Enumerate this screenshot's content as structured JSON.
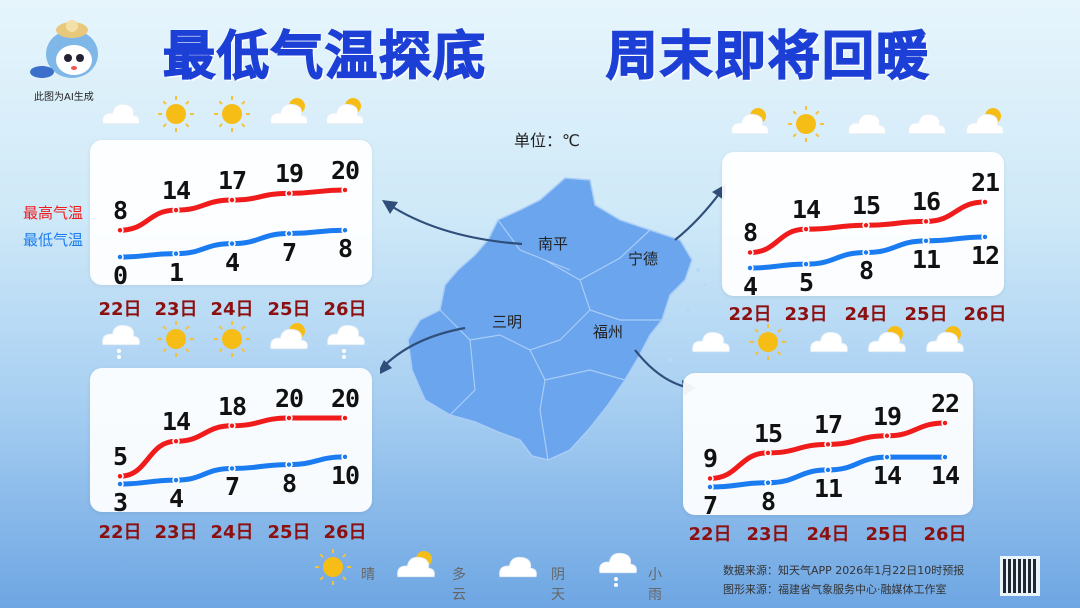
{
  "header": {
    "title_left": "最低气温探底",
    "title_right": "周末即将回暖",
    "ai_note": "此图为AI生成",
    "unit": "单位：℃"
  },
  "series_legend": {
    "high": "最高气温",
    "low": "最低气温",
    "high_color": "#f01c1c",
    "low_color": "#1a7cf0"
  },
  "dates": [
    "22日",
    "23日",
    "24日",
    "25日",
    "26日"
  ],
  "cities": {
    "nanping": "南平",
    "ningde": "宁德",
    "sanming": "三明",
    "fuzhou": "福州"
  },
  "chart_data": [
    {
      "type": "line",
      "city": "南平",
      "categories": [
        "22日",
        "23日",
        "24日",
        "25日",
        "26日"
      ],
      "weather": [
        "cloudy",
        "sunny",
        "sunny",
        "partly-cloudy",
        "partly-cloudy"
      ],
      "series": [
        {
          "name": "最高气温",
          "values": [
            8,
            14,
            17,
            19,
            20
          ]
        },
        {
          "name": "最低气温",
          "values": [
            0,
            1,
            4,
            7,
            8
          ]
        }
      ]
    },
    {
      "type": "line",
      "city": "宁德",
      "categories": [
        "22日",
        "23日",
        "24日",
        "25日",
        "26日"
      ],
      "weather": [
        "partly-cloudy",
        "sunny",
        "cloudy",
        "cloudy",
        "partly-cloudy"
      ],
      "series": [
        {
          "name": "最高气温",
          "values": [
            8,
            14,
            15,
            16,
            21
          ]
        },
        {
          "name": "最低气温",
          "values": [
            4,
            5,
            8,
            11,
            12
          ]
        }
      ]
    },
    {
      "type": "line",
      "city": "三明",
      "categories": [
        "22日",
        "23日",
        "24日",
        "25日",
        "26日"
      ],
      "weather": [
        "light-rain",
        "sunny",
        "sunny",
        "partly-cloudy",
        "light-rain"
      ],
      "series": [
        {
          "name": "最高气温",
          "values": [
            5,
            14,
            18,
            20,
            20
          ]
        },
        {
          "name": "最低气温",
          "values": [
            3,
            4,
            7,
            8,
            10
          ]
        }
      ]
    },
    {
      "type": "line",
      "city": "福州",
      "categories": [
        "22日",
        "23日",
        "24日",
        "25日",
        "26日"
      ],
      "weather": [
        "cloudy",
        "sunny",
        "cloudy",
        "partly-cloudy",
        "partly-cloudy"
      ],
      "series": [
        {
          "name": "最高气温",
          "values": [
            9,
            15,
            17,
            19,
            22
          ]
        },
        {
          "name": "最低气温",
          "values": [
            7,
            8,
            11,
            14,
            14
          ]
        }
      ]
    }
  ],
  "legend": [
    {
      "icon": "sunny",
      "label": "晴"
    },
    {
      "icon": "partly-cloudy",
      "label": "多云"
    },
    {
      "icon": "cloudy",
      "label": "阴天"
    },
    {
      "icon": "light-rain",
      "label": "小雨"
    }
  ],
  "footer": {
    "data_source": "数据来源：知天气APP 2026年1月22日10时预报",
    "graphic_source": "图形来源：福建省气象服务中心·融媒体工作室"
  }
}
